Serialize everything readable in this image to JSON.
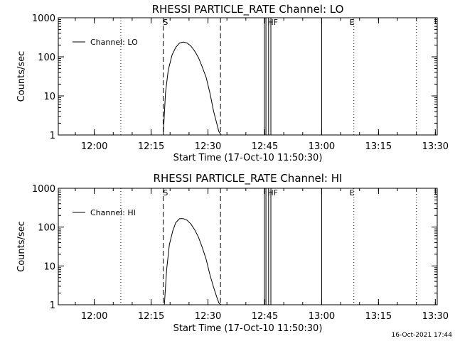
{
  "footer_timestamp": "16-Oct-2021 17:44",
  "chart_data": [
    {
      "type": "line",
      "title": "RHESSI PARTICLE_RATE Channel: LO",
      "xlabel": "Start Time (17-Oct-10 11:50:30)",
      "ylabel": "Counts/sec",
      "yscale": "log",
      "xlim_minutes_after_start": [
        0,
        100
      ],
      "ylim": [
        1,
        1000
      ],
      "x_tick_labels": [
        "12:00",
        "12:15",
        "12:30",
        "12:45",
        "13:00",
        "13:15",
        "13:30"
      ],
      "x_tick_minutes": [
        9.5,
        24.5,
        39.5,
        54.5,
        69.5,
        84.5,
        99.5
      ],
      "y_tick_labels": [
        "1",
        "10",
        "100",
        "1000"
      ],
      "y_tick_values": [
        1,
        10,
        100,
        1000
      ],
      "legend": "Channel: LO",
      "legend_position": "top-left",
      "series": [
        {
          "name": "Channel: LO",
          "x_minutes": [
            27.7,
            28.3,
            29,
            30,
            31,
            32,
            33,
            34,
            35,
            36,
            37,
            38,
            39,
            40,
            41,
            41.8,
            42.4,
            43
          ],
          "values": [
            1,
            12,
            45,
            110,
            175,
            225,
            240,
            225,
            190,
            140,
            95,
            55,
            30,
            12,
            4,
            2,
            1.2,
            1
          ]
        }
      ],
      "annotations": [
        {
          "label": "S",
          "minute": 28.3
        },
        {
          "label": "HF",
          "minute": 56.6
        },
        {
          "label": "E",
          "minute": 77.5
        }
      ],
      "dashed_lines_minutes": [
        27.7,
        42.8
      ],
      "dotted_lines_minutes": [
        16.5,
        78,
        94.5
      ],
      "solid_lines_minutes": [
        54.4,
        54.8,
        55.5,
        56.1,
        69.5
      ]
    },
    {
      "type": "line",
      "title": "RHESSI PARTICLE_RATE Channel: HI",
      "xlabel": "Start Time (17-Oct-10 11:50:30)",
      "ylabel": "Counts/sec",
      "yscale": "log",
      "xlim_minutes_after_start": [
        0,
        100
      ],
      "ylim": [
        1,
        1000
      ],
      "x_tick_labels": [
        "12:00",
        "12:15",
        "12:30",
        "12:45",
        "13:00",
        "13:15",
        "13:30"
      ],
      "x_tick_minutes": [
        9.5,
        24.5,
        39.5,
        54.5,
        69.5,
        84.5,
        99.5
      ],
      "y_tick_labels": [
        "1",
        "10",
        "100",
        "1000"
      ],
      "y_tick_values": [
        1,
        10,
        100,
        1000
      ],
      "legend": "Channel: HI",
      "legend_position": "top-left",
      "series": [
        {
          "name": "Channel: HI",
          "x_minutes": [
            28,
            28.6,
            29.3,
            30.2,
            31,
            32,
            33,
            34,
            35,
            36,
            37,
            38,
            39,
            40,
            41,
            41.8,
            42.4,
            42.9
          ],
          "values": [
            1,
            8,
            35,
            80,
            130,
            165,
            165,
            150,
            120,
            85,
            55,
            30,
            15,
            6,
            2.8,
            1.6,
            1.1,
            1
          ]
        }
      ],
      "annotations": [
        {
          "label": "S",
          "minute": 28.3
        },
        {
          "label": "HF",
          "minute": 56.6
        },
        {
          "label": "E",
          "minute": 77.5
        }
      ],
      "dashed_lines_minutes": [
        27.7,
        42.8
      ],
      "dotted_lines_minutes": [
        16.5,
        78,
        94.5
      ],
      "solid_lines_minutes": [
        54.4,
        54.8,
        55.5,
        56.1,
        69.5
      ]
    }
  ]
}
